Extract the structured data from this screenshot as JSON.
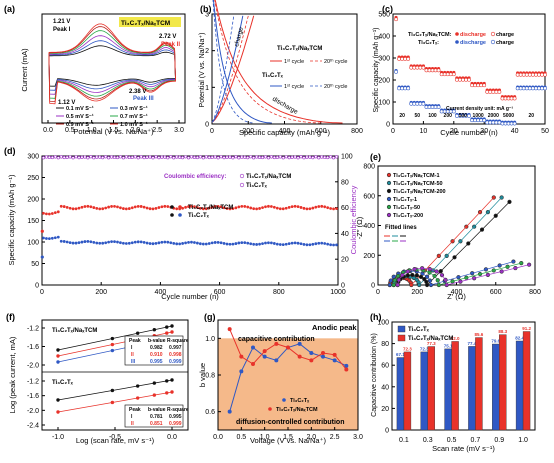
{
  "colors": {
    "black": "#111111",
    "red": "#e8322a",
    "blue": "#2f58c4",
    "purple": "#9b30c4",
    "green": "#2aa84a",
    "gray": "#888888",
    "orange": "#f5b98a",
    "teal": "#1f8c9c",
    "darkred": "#b5221c"
  },
  "chart_data": [
    {
      "panel": "(a)",
      "type": "line",
      "xlabel": "Potential (V vs. Na/Na⁺)",
      "ylabel": "Current (mA)",
      "xlim": [
        0,
        3
      ],
      "xticks": [
        "0.0",
        "0.5",
        "1.0",
        "1.5",
        "2.0",
        "2.5",
        "3.0"
      ],
      "legend_title": "Ti₃C₂Tₓ/NaₓTCM",
      "annotations": [
        "1.21 V",
        "Peak I",
        "2.72 V",
        "Peak II",
        "2.38 V",
        "Peak III",
        "1.12 V"
      ],
      "series": [
        {
          "name": "0.1 mV S⁻¹",
          "amp": 0.35
        },
        {
          "name": "0.3 mV S⁻¹",
          "amp": 0.5
        },
        {
          "name": "0.5 mV S⁻¹",
          "amp": 0.65
        },
        {
          "name": "0.7 mV S⁻¹",
          "amp": 0.8
        },
        {
          "name": "0.9 mV S⁻¹",
          "amp": 0.92
        },
        {
          "name": "1.0 mV S⁻¹",
          "amp": 1.0
        }
      ]
    },
    {
      "panel": "(b)",
      "type": "line",
      "xlabel": "Specific capacity (mAh g⁻¹)",
      "ylabel": "Potential (V vs. Na/Na⁺)",
      "xlim": [
        0,
        800
      ],
      "ylim": [
        0,
        3
      ],
      "xticks": [
        "0",
        "200",
        "400",
        "600",
        "800"
      ],
      "yticks": [
        "0",
        "1",
        "2",
        "3"
      ],
      "labels": [
        "charge",
        "discharge"
      ],
      "groups": [
        {
          "name": "Ti₃C₂Tₓ/NaₓTCM",
          "items": [
            "1ˢᵗ cycle",
            "20ᵗʰ cycle"
          ]
        },
        {
          "name": "Ti₃C₂Tₓ",
          "items": [
            "1ˢᵗ cycle",
            "20ᵗʰ cycle"
          ]
        }
      ]
    },
    {
      "panel": "(c)",
      "type": "scatter",
      "xlabel": "Cycle number (n)",
      "ylabel": "Specific capacity (mAh g⁻¹)",
      "xlim": [
        0,
        50
      ],
      "ylim": [
        0,
        500
      ],
      "xticks": [
        "0",
        "10",
        "20",
        "30",
        "40",
        "50"
      ],
      "yticks": [
        "0",
        "100",
        "200",
        "300",
        "400",
        "500"
      ],
      "legend": [
        "Ti₃C₂Tₓ/NaₓTCM:",
        "discharge",
        "charge",
        "Ti₃C₂Tₓ:",
        "discharge",
        "charge"
      ],
      "current_label": "Current density unit: mA g⁻¹",
      "rate_labels": [
        "20",
        "50",
        "100",
        "200",
        "500",
        "1000",
        "2000",
        "5000",
        "20"
      ],
      "composite": [
        300,
        260,
        248,
        230,
        205,
        180,
        150,
        120,
        228
      ],
      "bare": [
        165,
        95,
        80,
        60,
        40,
        20,
        10,
        5,
        165
      ]
    },
    {
      "panel": "(d)",
      "type": "scatter",
      "xlabel": "Cycle number (n)",
      "ylabel": "Specific capacity (mAh g⁻¹)",
      "y2label": "Coulombic efficiency",
      "xlim": [
        0,
        1000
      ],
      "ylim": [
        0,
        300
      ],
      "y2lim": [
        0,
        100
      ],
      "xticks": [
        "0",
        "200",
        "400",
        "600",
        "800",
        "1000"
      ],
      "yticks": [
        "0",
        "50",
        "100",
        "150",
        "200",
        "250",
        "300"
      ],
      "y2ticks": [
        "0",
        "20",
        "40",
        "60",
        "80",
        "100"
      ],
      "ce_label": "Coulombic efficiency:",
      "legend": [
        "Ti₃C₂Tₓ/NaₓTCM",
        "Ti₃C₂Tₓ"
      ],
      "composite_capacity": 180,
      "bare_capacity": 100,
      "coulombic_efficiency": 100
    },
    {
      "panel": "(e)",
      "type": "scatter",
      "xlabel": "Z′ (Ω)",
      "ylabel": "-Z″ (Ω)",
      "xlim": [
        0,
        800
      ],
      "ylim": [
        0,
        800
      ],
      "xticks": [
        "0",
        "200",
        "400",
        "600",
        "800"
      ],
      "yticks": [
        "0",
        "200",
        "400",
        "600",
        "800"
      ],
      "legend": [
        "Ti₃C₂Tₓ/NaₓTCM-1",
        "Ti₃C₂Tₓ/NaₓTCM-50",
        "Ti₃C₂Tₓ/NaₓTCM-200",
        "Ti₃C₂Tₓ-1",
        "Ti₃C₂Tₓ-50",
        "Ti₃C₂Tₓ-200"
      ],
      "fit_label": "Fitted lines"
    },
    {
      "panel": "(f)",
      "type": "scatter",
      "xlabel": "Log (scan rate, mV s⁻¹)",
      "ylabel": "Log (peak current, mA)",
      "xticks": [
        "-1.0",
        "-0.5",
        "0.0"
      ],
      "yticks_top": [
        "-2.0",
        "-1.6",
        "-1.2"
      ],
      "yticks_bottom": [
        "-2.4",
        "-2.0",
        "-1.6",
        "-1.2"
      ],
      "top_label": "Ti₃C₂Tₓ/NaₓTCM",
      "bottom_label": "Ti₃C₂Tₓ",
      "table_head": [
        "Peak",
        "b-value",
        "R-square"
      ],
      "table_top": [
        [
          "I",
          "0.982",
          "0.997"
        ],
        [
          "II",
          "0.910",
          "0.998"
        ],
        [
          "III",
          "0.995",
          "0.999"
        ]
      ],
      "table_bottom": [
        [
          "I",
          "0.781",
          "0.995"
        ],
        [
          "II",
          "0.851",
          "0.999"
        ]
      ]
    },
    {
      "panel": "(g)",
      "type": "line",
      "xlabel": "Voltage (V vs. Na/Na⁺)",
      "ylabel": "b value",
      "xlim": [
        0,
        3
      ],
      "ylim": [
        0.5,
        1.1
      ],
      "xticks": [
        "0.0",
        "0.5",
        "1.0",
        "1.5",
        "2.0",
        "2.5",
        "3.0"
      ],
      "yticks": [
        "0.6",
        "0.8",
        "1.0"
      ],
      "annotations": [
        "Anodic peak",
        "capacitive  contribution",
        "diffusion-controlled  contribution"
      ],
      "series": [
        {
          "name": "Ti₃C₂Tₓ",
          "x": [
            0.25,
            0.5,
            0.75,
            1.0,
            1.25,
            1.5,
            1.75,
            2.0,
            2.25,
            2.5,
            2.75
          ],
          "y": [
            0.6,
            0.82,
            0.95,
            0.9,
            0.88,
            0.95,
            0.97,
            0.92,
            0.9,
            0.88,
            0.85
          ]
        },
        {
          "name": "Ti₃C₂Tₓ/NaₓTCM",
          "x": [
            0.25,
            0.5,
            0.75,
            1.0,
            1.25,
            1.5,
            1.75,
            2.0,
            2.25,
            2.5,
            2.75
          ],
          "y": [
            1.05,
            0.9,
            0.86,
            0.93,
            0.97,
            0.95,
            0.9,
            0.88,
            0.92,
            0.91,
            0.83
          ]
        }
      ]
    },
    {
      "panel": "(h)",
      "type": "bar",
      "xlabel": "Scan rate (mV s⁻¹)",
      "ylabel": "Capacitive contribution (%)",
      "ylim": [
        0,
        100
      ],
      "yticks": [
        "0",
        "20",
        "40",
        "60",
        "80",
        "100"
      ],
      "categories": [
        "0.1",
        "0.3",
        "0.5",
        "0.7",
        "0.9",
        "1.0"
      ],
      "series": [
        {
          "name": "Ti₃C₂Tₓ",
          "values": [
            67.1,
            72.3,
            75.1,
            77.4,
            79.6,
            82.4
          ]
        },
        {
          "name": "Ti₃C₂Tₓ/NaₓTCM",
          "values": [
            72.3,
            77.3,
            82.0,
            85.6,
            88.3,
            91.2
          ]
        }
      ]
    }
  ]
}
